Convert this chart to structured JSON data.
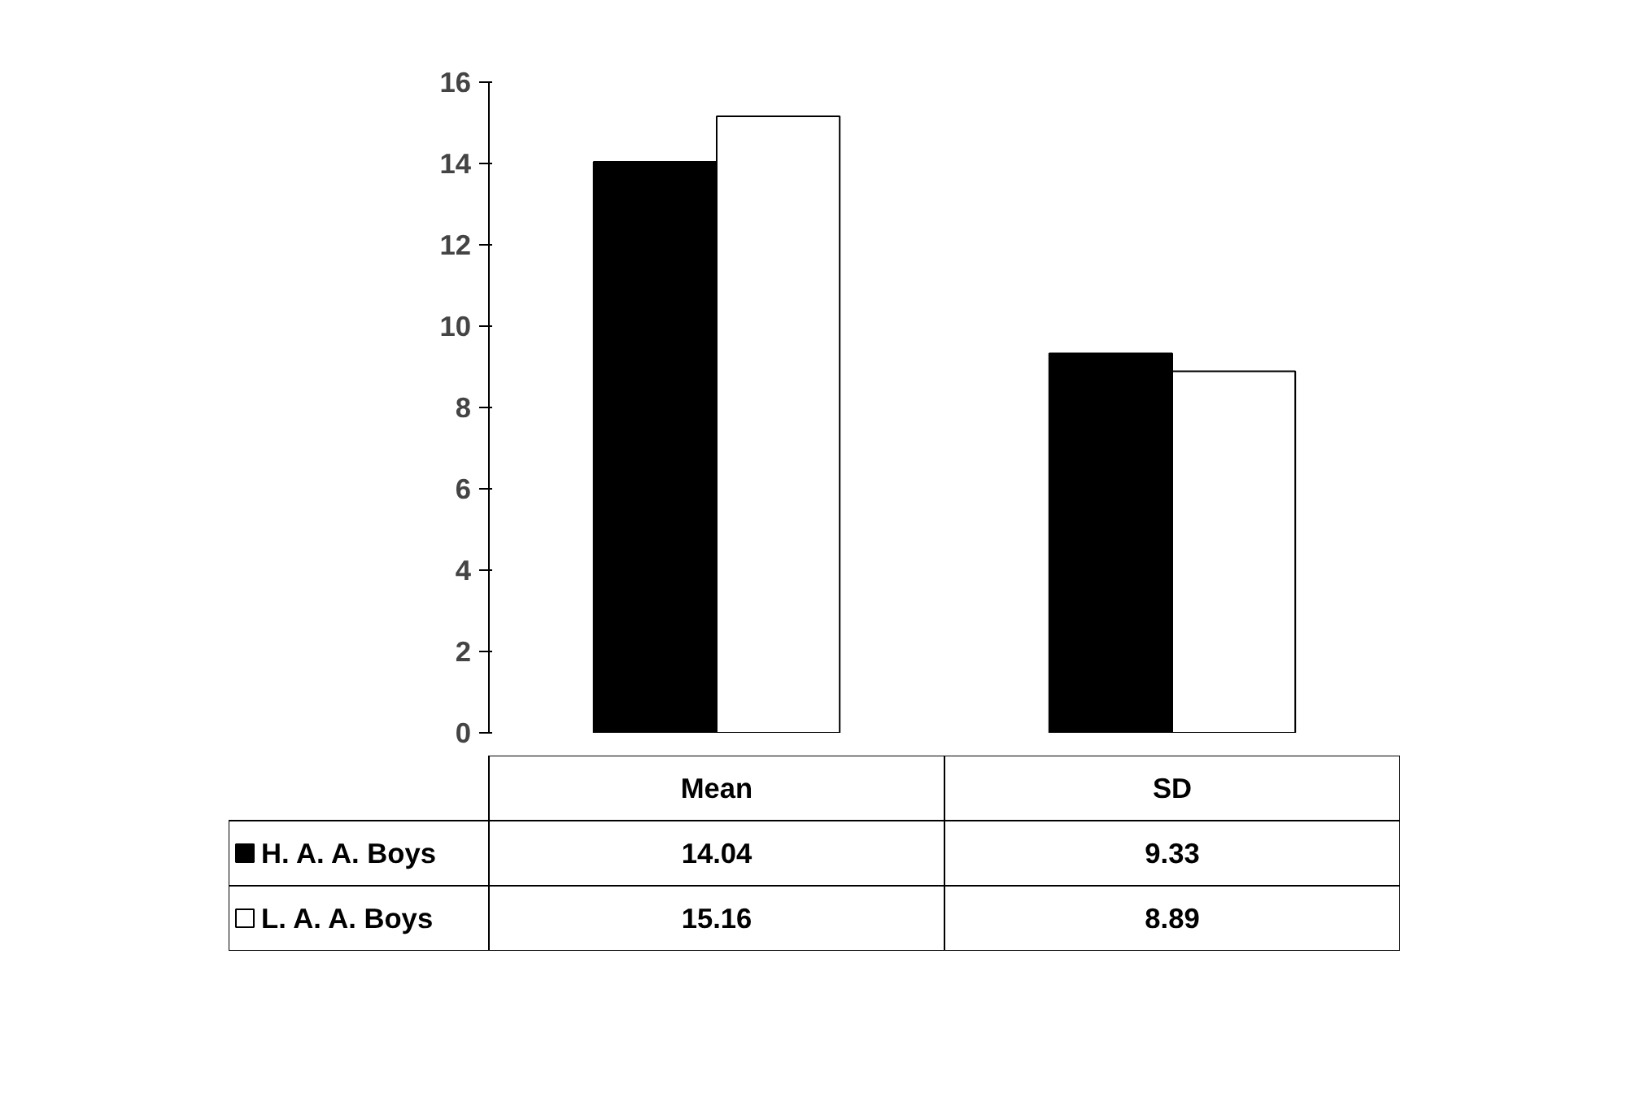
{
  "chart_data": {
    "type": "bar",
    "categories": [
      "Mean",
      "SD"
    ],
    "series": [
      {
        "name": "H. A. A. Boys",
        "color": "#000000",
        "values": [
          14.04,
          9.33
        ]
      },
      {
        "name": "L. A. A. Boys",
        "color": "#ffffff",
        "values": [
          15.16,
          8.89
        ]
      }
    ],
    "ylim": [
      0,
      16
    ],
    "yticks": [
      0,
      2,
      4,
      6,
      8,
      10,
      12,
      14,
      16
    ],
    "grid": false,
    "legend": "bottom",
    "data_labels": true
  }
}
